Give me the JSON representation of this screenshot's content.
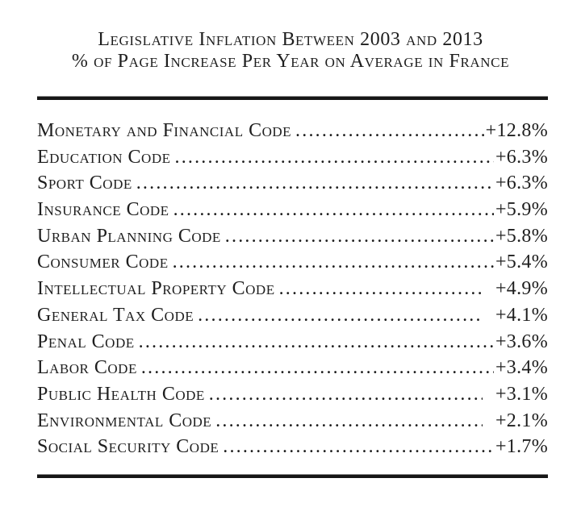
{
  "chart_data": {
    "type": "table",
    "title": "Legislative Inflation Between 2003 and 2013",
    "subtitle": "% of Page Increase Per Year on Average in France",
    "unit": "percent page increase per year",
    "rows": [
      {
        "label": "Monetary and Financial Code",
        "value": 12.8,
        "value_label": "+12.8%",
        "gap_before_value": false
      },
      {
        "label": "Education Code",
        "value": 6.3,
        "value_label": "+6.3%",
        "gap_before_value": false
      },
      {
        "label": "Sport Code",
        "value": 6.3,
        "value_label": "+6.3%",
        "gap_before_value": false
      },
      {
        "label": "Insurance Code",
        "value": 5.9,
        "value_label": "+5.9%",
        "gap_before_value": false
      },
      {
        "label": "Urban Planning Code",
        "value": 5.8,
        "value_label": "+5.8%",
        "gap_before_value": false
      },
      {
        "label": "Consumer Code",
        "value": 5.4,
        "value_label": "+5.4%",
        "gap_before_value": false
      },
      {
        "label": "Intellectual Property Code",
        "value": 4.9,
        "value_label": "+4.9%",
        "gap_before_value": true
      },
      {
        "label": "General Tax Code",
        "value": 4.1,
        "value_label": "+4.1%",
        "gap_before_value": true
      },
      {
        "label": "Penal Code",
        "value": 3.6,
        "value_label": "+3.6%",
        "gap_before_value": false
      },
      {
        "label": "Labor Code",
        "value": 3.4,
        "value_label": "+3.4%",
        "gap_before_value": false
      },
      {
        "label": "Public Health Code",
        "value": 3.1,
        "value_label": "+3.1%",
        "gap_before_value": true
      },
      {
        "label": "Environmental Code",
        "value": 2.1,
        "value_label": "+2.1%",
        "gap_before_value": true
      },
      {
        "label": "Social Security Code",
        "value": 1.7,
        "value_label": "+1.7%",
        "gap_before_value": false
      }
    ]
  },
  "colors": {
    "background": "#ffffff",
    "text": "#1e1e1e",
    "rule": "#161616"
  }
}
